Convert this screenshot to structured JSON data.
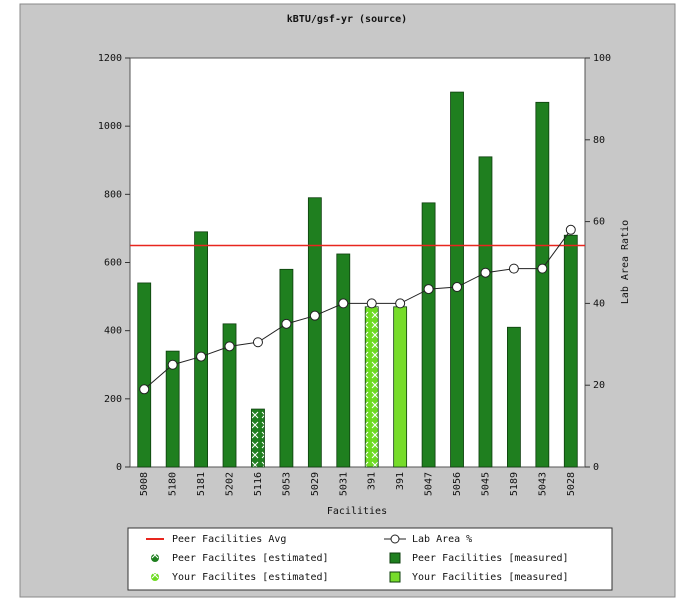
{
  "chart_data": {
    "type": "bar",
    "title": "kBTU/gsf-yr (source)",
    "x_label": "Facilities",
    "y2_label": "Lab Area Ratio",
    "categories": [
      "5008",
      "5180",
      "5181",
      "5202",
      "5116",
      "5053",
      "5029",
      "5031",
      "391",
      "391",
      "5047",
      "5056",
      "5045",
      "5189",
      "5043",
      "5028"
    ],
    "ylim": [
      0,
      1200
    ],
    "yticks": [
      0,
      200,
      400,
      600,
      800,
      1000,
      1200
    ],
    "y2lim": [
      0,
      100
    ],
    "y2ticks": [
      0,
      20,
      40,
      60,
      80,
      100
    ],
    "series": [
      {
        "name": "Peer Facilities Avg",
        "type": "hline",
        "color": "#e8261e",
        "value": 650
      },
      {
        "name": "Lab Area %",
        "type": "line",
        "axis": "y2",
        "color": "#222222",
        "values": [
          19,
          25,
          27,
          29.5,
          30.5,
          35,
          37,
          40,
          40,
          40,
          43.5,
          44,
          47.5,
          48.5,
          48.5,
          58
        ]
      },
      {
        "name": "Peer Facilites [estimated]",
        "type": "bar",
        "color": "#1f7f1f",
        "hatch": true,
        "values": [
          null,
          null,
          null,
          null,
          170,
          null,
          null,
          null,
          null,
          null,
          null,
          null,
          null,
          null,
          null,
          null
        ]
      },
      {
        "name": "Peer Facilities [measured]",
        "type": "bar",
        "color": "#1f7f1f",
        "hatch": false,
        "values": [
          540,
          340,
          690,
          420,
          null,
          580,
          790,
          625,
          null,
          null,
          775,
          1100,
          910,
          410,
          1070,
          680
        ]
      },
      {
        "name": "Your Facilites [estimated]",
        "type": "bar",
        "color": "#6edc22",
        "hatch": true,
        "values": [
          null,
          null,
          null,
          null,
          null,
          null,
          null,
          null,
          470,
          null,
          null,
          null,
          null,
          null,
          null,
          null
        ]
      },
      {
        "name": "Your Facilities [measured]",
        "type": "bar",
        "color": "#76dc2a",
        "hatch": false,
        "values": [
          null,
          null,
          null,
          null,
          null,
          null,
          null,
          null,
          null,
          470,
          null,
          null,
          null,
          null,
          null,
          null
        ]
      }
    ]
  }
}
